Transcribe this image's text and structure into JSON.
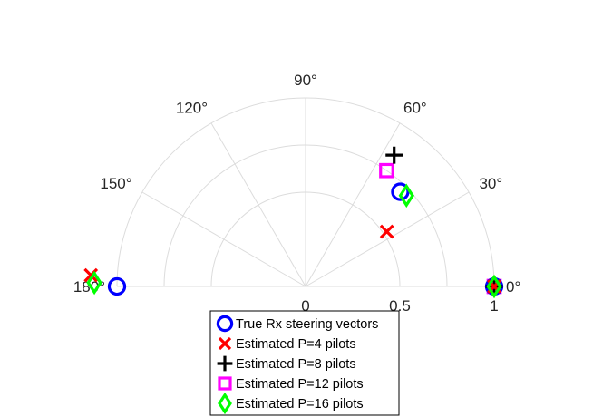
{
  "chart_data": {
    "type": "polar-scatter",
    "angle_range_deg": [
      0,
      180
    ],
    "rlim": [
      0,
      1
    ],
    "grid": true,
    "legend_position": "bottom",
    "theta_ticks": [
      {
        "deg": 0,
        "label": "0°"
      },
      {
        "deg": 30,
        "label": "30°"
      },
      {
        "deg": 60,
        "label": "60°"
      },
      {
        "deg": 90,
        "label": "90°"
      },
      {
        "deg": 120,
        "label": "120°"
      },
      {
        "deg": 150,
        "label": "150°"
      },
      {
        "deg": 180,
        "label": "180°"
      }
    ],
    "r_ticks": [
      {
        "value": 0,
        "label": "0"
      },
      {
        "value": 0.5,
        "label": "0.5"
      },
      {
        "value": 1,
        "label": "1"
      }
    ],
    "series": [
      {
        "name": "True Rx steering vectors",
        "marker": "circle",
        "color": "#0000ff",
        "points": [
          {
            "theta": 0,
            "r": 1
          },
          {
            "theta": 45,
            "r": 0.71
          },
          {
            "theta": 180,
            "r": 1
          }
        ]
      },
      {
        "name": "Estimated P=4 pilots",
        "marker": "x",
        "color": "#ff0000",
        "points": [
          {
            "theta": 0,
            "r": 1
          },
          {
            "theta": 34,
            "r": 0.52
          },
          {
            "theta": 177,
            "r": 1.14
          }
        ]
      },
      {
        "name": "Estimated P=8 pilots",
        "marker": "plus",
        "color": "#000000",
        "points": [
          {
            "theta": 0,
            "r": 1
          },
          {
            "theta": 56,
            "r": 0.84
          }
        ]
      },
      {
        "name": "Estimated P=12 pilots",
        "marker": "square",
        "color": "#ff00ff",
        "points": [
          {
            "theta": 0,
            "r": 1
          },
          {
            "theta": 55,
            "r": 0.75
          }
        ]
      },
      {
        "name": "Estimated P=16 pilots",
        "marker": "diamond",
        "color": "#00ff00",
        "points": [
          {
            "theta": 0,
            "r": 1
          },
          {
            "theta": 42,
            "r": 0.72
          },
          {
            "theta": 179,
            "r": 1.12
          }
        ]
      }
    ]
  }
}
